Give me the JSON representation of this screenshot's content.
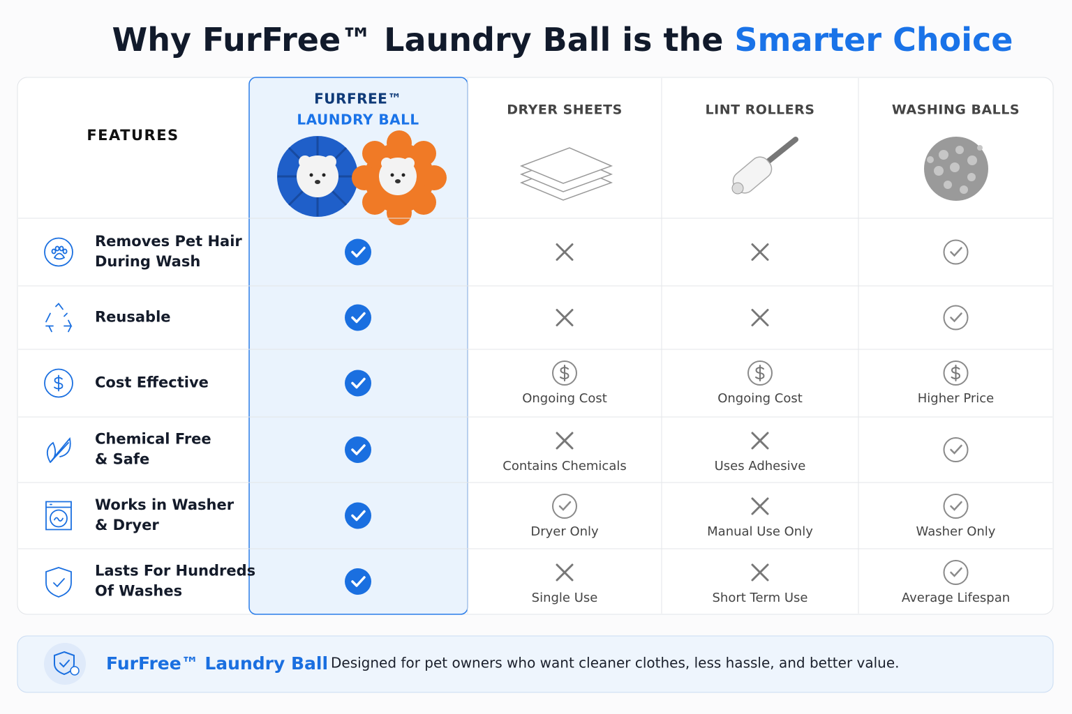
{
  "title": {
    "main": "Why FurFree™ Laundry Ball is the",
    "highlight": "Smarter Choice"
  },
  "table": {
    "columns": [
      "FEATURES",
      [
        "FURFREE™",
        "LAUNDRY BALL"
      ],
      "DRYER SHEETS",
      "LINT ROLLERS",
      "WASHING BALLS"
    ],
    "rows": [
      {
        "feature": [
          "Removes Pet Hair",
          "During Wash"
        ]
      },
      {
        "feature": [
          "Reusable"
        ]
      },
      {
        "feature": [
          "Cost Effective"
        ],
        "notes": [
          "Ongoing Cost",
          "Ongoing Cost",
          "Higher Price"
        ]
      },
      {
        "feature": [
          "Chemical Free",
          "& Safe"
        ],
        "notes": [
          "Contains Chemicals",
          "Uses Adhesive"
        ]
      },
      {
        "feature": [
          "Works in Washer",
          "& Dryer"
        ],
        "notes": [
          "Dryer Only",
          "Manual Use Only",
          "Washer Only"
        ]
      },
      {
        "feature": [
          "Lasts For Hundreds",
          "Of Washes"
        ],
        "notes": [
          "Single Use",
          "Short Term Use",
          "Average Lifespan"
        ]
      }
    ]
  },
  "footer": {
    "brand": "FurFree™ Laundry Ball",
    "text": "Designed for pet owners who want cleaner clothes, less hassle, and better value."
  }
}
